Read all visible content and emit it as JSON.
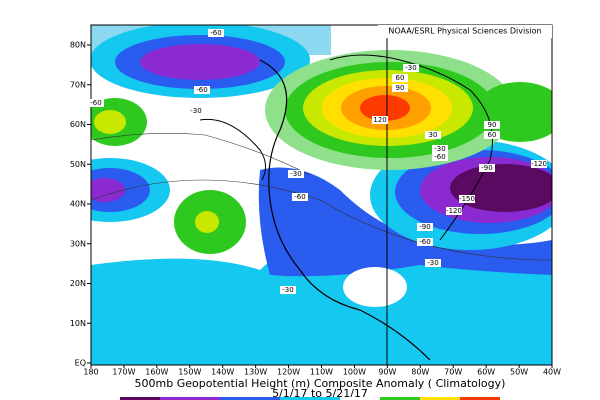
{
  "header": {
    "credit": "NOAA/ESRL Physical Sciences Division"
  },
  "title": "500mb Geopotential Height (m) Composite Anomaly ( Climatology)",
  "date_range": "5/1/17  to 5/21/17",
  "axes": {
    "lat_labels": [
      "80N",
      "70N",
      "60N",
      "50N",
      "40N",
      "30N",
      "20N",
      "10N",
      "EQ"
    ],
    "lon_labels": [
      "180",
      "170W",
      "160W",
      "150W",
      "140W",
      "130W",
      "120W",
      "110W",
      "100W",
      "90W",
      "80W",
      "70W",
      "60W",
      "50W",
      "40W"
    ]
  },
  "contour_labels": [
    "-60",
    "-60",
    "-30",
    "-60",
    "-30",
    "60",
    "90",
    "120",
    "90",
    "60",
    "30",
    "-30",
    "-60",
    "-90",
    "-120",
    "-30",
    "-60",
    "-150",
    "-120",
    "-90",
    "-60",
    "-30",
    "-30"
  ]
}
